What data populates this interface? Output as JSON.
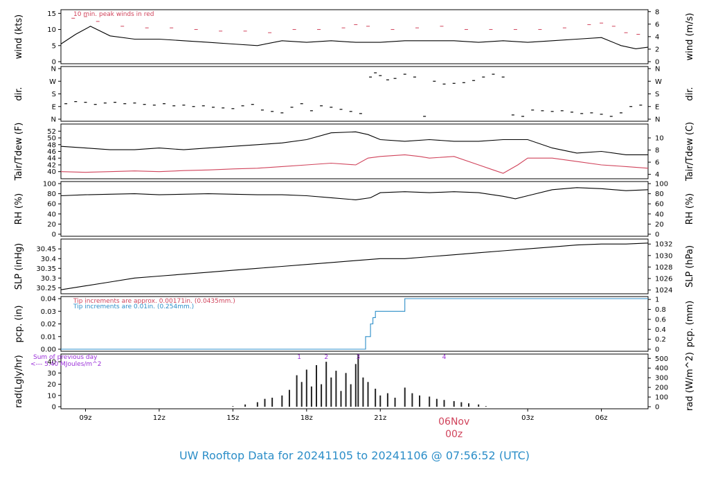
{
  "colors": {
    "series": "#000000",
    "peak": "#d0425a",
    "precip_fine": "#d0425a",
    "precip_coarse": "#2c8ec8",
    "radiation_note": "#9b30d9",
    "date_marker": "#d0425a",
    "footer": "#2c8ec8"
  },
  "footer": {
    "title": "UW Rooftop Data for 20241105  to  20241106 @ 07:56:52  (UTC)"
  },
  "x_axis": {
    "ticks": [
      "09z",
      "12z",
      "15z",
      "18z",
      "21z",
      "03z",
      "06z"
    ],
    "tick_hours": [
      9,
      12,
      15,
      18,
      21,
      27,
      30
    ],
    "range_hours": [
      8.0,
      31.9
    ],
    "date_marker": {
      "date": "06Nov",
      "time": "00z",
      "hour": 24
    }
  },
  "chart_data": [
    {
      "id": "wind",
      "type": "line",
      "ylabel_left": "wind (kts)",
      "ylabel_right": "wind (m/s)",
      "ylim": [
        0,
        15.5
      ],
      "yticks_left": [
        0,
        5,
        10,
        15
      ],
      "yticks_right": [
        0,
        2,
        4,
        6,
        8
      ],
      "right_factor": 0.5144,
      "annotation": "10 min. peak winds in red",
      "series": [
        {
          "name": "wind speed",
          "x": [
            8.0,
            8.6,
            9.2,
            10.0,
            11.0,
            12.0,
            13.0,
            14.0,
            15.0,
            16.0,
            17.0,
            18.0,
            19.0,
            20.0,
            21.0,
            22.0,
            23.0,
            24.0,
            25.0,
            26.0,
            27.0,
            28.0,
            29.0,
            30.0,
            30.8,
            31.4,
            31.9
          ],
          "y": [
            5.5,
            8.5,
            11.0,
            8.0,
            7.0,
            7.0,
            6.5,
            6.0,
            5.5,
            5.0,
            6.5,
            6.0,
            6.5,
            6.0,
            6.0,
            6.5,
            6.5,
            6.5,
            6.0,
            6.5,
            6.0,
            6.5,
            7.0,
            7.5,
            5.0,
            4.0,
            4.5
          ]
        },
        {
          "name": "peak",
          "x": [
            8.5,
            9.0,
            9.5,
            10.5,
            11.5,
            12.5,
            13.5,
            14.5,
            15.5,
            16.5,
            17.5,
            18.5,
            19.5,
            20.0,
            20.5,
            21.5,
            22.5,
            23.5,
            24.5,
            25.5,
            26.5,
            27.5,
            28.5,
            29.5,
            30.0,
            30.5,
            31.0,
            31.5
          ],
          "y": [
            13.5,
            14.0,
            12.5,
            11.0,
            10.5,
            10.5,
            10.0,
            9.5,
            9.5,
            9.0,
            10.0,
            10.0,
            10.5,
            11.5,
            11.0,
            10.0,
            10.5,
            11.0,
            10.0,
            10.0,
            10.0,
            10.0,
            10.5,
            11.5,
            12.0,
            11.0,
            9.0,
            8.5
          ]
        }
      ]
    },
    {
      "id": "direction",
      "type": "scatter",
      "ylabel_left": "dir.",
      "ylabel_right": "dir.",
      "ylim": [
        0,
        360
      ],
      "ytick_values": [
        0,
        90,
        180,
        270,
        360
      ],
      "ytick_labels": [
        "N",
        "E",
        "S",
        "W",
        "N"
      ],
      "series": [
        {
          "name": "direction",
          "x": [
            8.2,
            8.6,
            9.0,
            9.4,
            9.8,
            10.2,
            10.6,
            11.0,
            11.4,
            11.8,
            12.2,
            12.6,
            13.0,
            13.4,
            13.8,
            14.2,
            14.6,
            15.0,
            15.4,
            15.8,
            16.2,
            16.6,
            17.0,
            17.4,
            17.8,
            18.2,
            18.6,
            19.0,
            19.4,
            19.8,
            20.2,
            20.6,
            20.8,
            21.0,
            21.3,
            21.6,
            22.0,
            22.4,
            22.8,
            23.2,
            23.6,
            24.0,
            24.4,
            24.8,
            25.2,
            25.6,
            26.0,
            26.4,
            26.8,
            27.2,
            27.6,
            28.0,
            28.4,
            28.8,
            29.2,
            29.6,
            30.0,
            30.4,
            30.8,
            31.2,
            31.6
          ],
          "y": [
            110,
            125,
            120,
            105,
            115,
            120,
            110,
            115,
            105,
            100,
            110,
            95,
            100,
            90,
            95,
            85,
            80,
            75,
            95,
            105,
            65,
            55,
            45,
            85,
            110,
            60,
            95,
            85,
            70,
            55,
            40,
            300,
            330,
            310,
            280,
            290,
            320,
            300,
            20,
            270,
            250,
            255,
            260,
            275,
            300,
            320,
            300,
            30,
            20,
            65,
            60,
            55,
            60,
            50,
            40,
            45,
            35,
            20,
            45,
            90,
            100
          ]
        }
      ]
    },
    {
      "id": "temperature",
      "type": "line",
      "ylabel_left": "Tair/Tdew (F)",
      "ylabel_right": "Tair/Tdew (C)",
      "ylim": [
        38.5,
        53.5
      ],
      "yticks_left": [
        40,
        42,
        44,
        46,
        48,
        50,
        52
      ],
      "yticks_right": [
        4,
        6,
        8,
        10
      ],
      "right_factor": 1.8,
      "right_offset": 32,
      "series": [
        {
          "name": "Tair",
          "x": [
            8.0,
            9.0,
            10.0,
            11.0,
            12.0,
            13.0,
            14.0,
            15.0,
            16.0,
            17.0,
            18.0,
            19.0,
            20.0,
            20.5,
            21.0,
            22.0,
            23.0,
            24.0,
            25.0,
            26.0,
            27.0,
            28.0,
            29.0,
            30.0,
            31.0,
            31.9
          ],
          "y": [
            47.5,
            47.0,
            46.5,
            46.5,
            47.0,
            46.5,
            47.0,
            47.5,
            48.0,
            48.5,
            49.5,
            51.5,
            51.8,
            51.0,
            49.5,
            49.0,
            49.5,
            49.0,
            49.0,
            49.5,
            49.5,
            47.0,
            45.5,
            46.0,
            45.0,
            45.0
          ]
        },
        {
          "name": "Tdew",
          "x": [
            8.0,
            9.0,
            10.0,
            11.0,
            12.0,
            13.0,
            14.0,
            15.0,
            16.0,
            17.0,
            18.0,
            19.0,
            20.0,
            20.5,
            21.0,
            22.0,
            22.6,
            23.0,
            24.0,
            25.0,
            25.6,
            26.0,
            26.6,
            27.0,
            28.0,
            29.0,
            30.0,
            31.0,
            31.9
          ],
          "y": [
            40.0,
            39.8,
            40.0,
            40.2,
            40.0,
            40.3,
            40.5,
            40.8,
            41.0,
            41.5,
            42.0,
            42.5,
            42.0,
            44.0,
            44.5,
            45.0,
            44.5,
            44.0,
            44.5,
            42.0,
            40.5,
            39.5,
            42.0,
            44.0,
            44.0,
            43.0,
            42.0,
            41.5,
            41.0
          ]
        }
      ]
    },
    {
      "id": "humidity",
      "type": "line",
      "ylabel_left": "RH (%)",
      "ylabel_right": "RH (%)",
      "ylim": [
        0,
        100
      ],
      "yticks_left": [
        0,
        20,
        40,
        60,
        80,
        100
      ],
      "yticks_right": [
        0,
        20,
        40,
        60,
        80,
        100
      ],
      "right_factor": 1,
      "series": [
        {
          "name": "RH",
          "x": [
            8.0,
            9.0,
            10.0,
            11.0,
            12.0,
            13.0,
            14.0,
            15.0,
            16.0,
            17.0,
            18.0,
            19.0,
            20.0,
            20.6,
            21.0,
            22.0,
            23.0,
            24.0,
            25.0,
            26.0,
            26.5,
            27.0,
            28.0,
            29.0,
            30.0,
            31.0,
            31.9
          ],
          "y": [
            76,
            78,
            79,
            80,
            78,
            79,
            80,
            79,
            78,
            78,
            76,
            72,
            68,
            72,
            82,
            84,
            82,
            84,
            82,
            75,
            70,
            76,
            88,
            92,
            90,
            86,
            88
          ]
        }
      ]
    },
    {
      "id": "pressure",
      "type": "line",
      "ylabel_left": "SLP (inHg)",
      "ylabel_right": "SLP (hPa)",
      "ylim": [
        30.23,
        30.49
      ],
      "yticks_left": [
        30.25,
        30.3,
        30.35,
        30.4,
        30.45
      ],
      "yticks_right": [
        1024,
        1026,
        1028,
        1030,
        1032
      ],
      "right_factor": 0.02953,
      "series": [
        {
          "name": "SLP",
          "x": [
            8.0,
            9.0,
            10.0,
            11.0,
            12.0,
            13.0,
            14.0,
            15.0,
            16.0,
            17.0,
            18.0,
            19.0,
            20.0,
            21.0,
            22.0,
            23.0,
            24.0,
            25.0,
            26.0,
            27.0,
            28.0,
            29.0,
            30.0,
            31.0,
            31.9
          ],
          "y": [
            30.24,
            30.26,
            30.28,
            30.3,
            30.31,
            30.32,
            30.33,
            30.34,
            30.35,
            30.36,
            30.37,
            30.38,
            30.39,
            30.4,
            30.4,
            30.41,
            30.42,
            30.43,
            30.44,
            30.45,
            30.46,
            30.47,
            30.475,
            30.475,
            30.48
          ]
        }
      ]
    },
    {
      "id": "precipitation",
      "type": "line",
      "ylabel_left": "pcp. (in)",
      "ylabel_right": "pcp. (mm)",
      "ylim": [
        0,
        0.04
      ],
      "yticks_left": [
        "0.00",
        "0.01",
        "0.02",
        "0.03",
        "0.04"
      ],
      "yticks_left_values": [
        0,
        0.01,
        0.02,
        0.03,
        0.04
      ],
      "yticks_right": [
        0,
        0.2,
        0.4,
        0.6,
        0.8,
        1
      ],
      "right_factor": 25.4,
      "annotations": [
        "Tip increments are approx. 0.00171in. (0.0435mm.)",
        "Tip increments are 0.01in. (0.254mm.)"
      ],
      "series": [
        {
          "name": "cumulative",
          "x": [
            8.0,
            20.4,
            20.4,
            20.6,
            20.6,
            20.7,
            20.7,
            20.8,
            20.8,
            22.0,
            22.0,
            31.9
          ],
          "y": [
            0.0,
            0.0,
            0.01,
            0.01,
            0.02,
            0.02,
            0.025,
            0.025,
            0.03,
            0.03,
            0.04,
            0.04
          ]
        }
      ]
    },
    {
      "id": "radiation",
      "type": "bar",
      "ylabel_left": "rad(Lgly/hr)",
      "ylabel_right": "rad (W/m^2)",
      "ylim": [
        0,
        45
      ],
      "yticks_left": [
        0,
        10,
        20,
        30,
        40
      ],
      "yticks_right": [
        0,
        100,
        200,
        300,
        400,
        500
      ],
      "right_factor": 11.63,
      "annotations": [
        "Sum of previous day",
        "<--- 5.40 MJoules/m^2"
      ],
      "markers": [
        {
          "label": "1",
          "hour": 17.7
        },
        {
          "label": "2",
          "hour": 18.8
        },
        {
          "label": "3",
          "hour": 20.1
        },
        {
          "label": "4",
          "hour": 23.6
        }
      ],
      "series": [
        {
          "name": "radiation",
          "x": [
            15.0,
            15.5,
            16.0,
            16.3,
            16.6,
            17.0,
            17.3,
            17.6,
            17.8,
            18.0,
            18.2,
            18.4,
            18.6,
            18.8,
            19.0,
            19.2,
            19.4,
            19.6,
            19.8,
            20.0,
            20.1,
            20.3,
            20.5,
            20.8,
            21.0,
            21.3,
            21.6,
            22.0,
            22.3,
            22.6,
            23.0,
            23.3,
            23.6,
            24.0,
            24.3,
            24.6,
            25.0,
            25.3
          ],
          "y": [
            0.5,
            2,
            4,
            7,
            8,
            10,
            15,
            28,
            22,
            33,
            18,
            37,
            20,
            40,
            26,
            32,
            14,
            30,
            20,
            38,
            46,
            26,
            22,
            16,
            10,
            12,
            8,
            17,
            12,
            10,
            9,
            7,
            6,
            5,
            4,
            3,
            2,
            0.5
          ]
        }
      ]
    }
  ]
}
